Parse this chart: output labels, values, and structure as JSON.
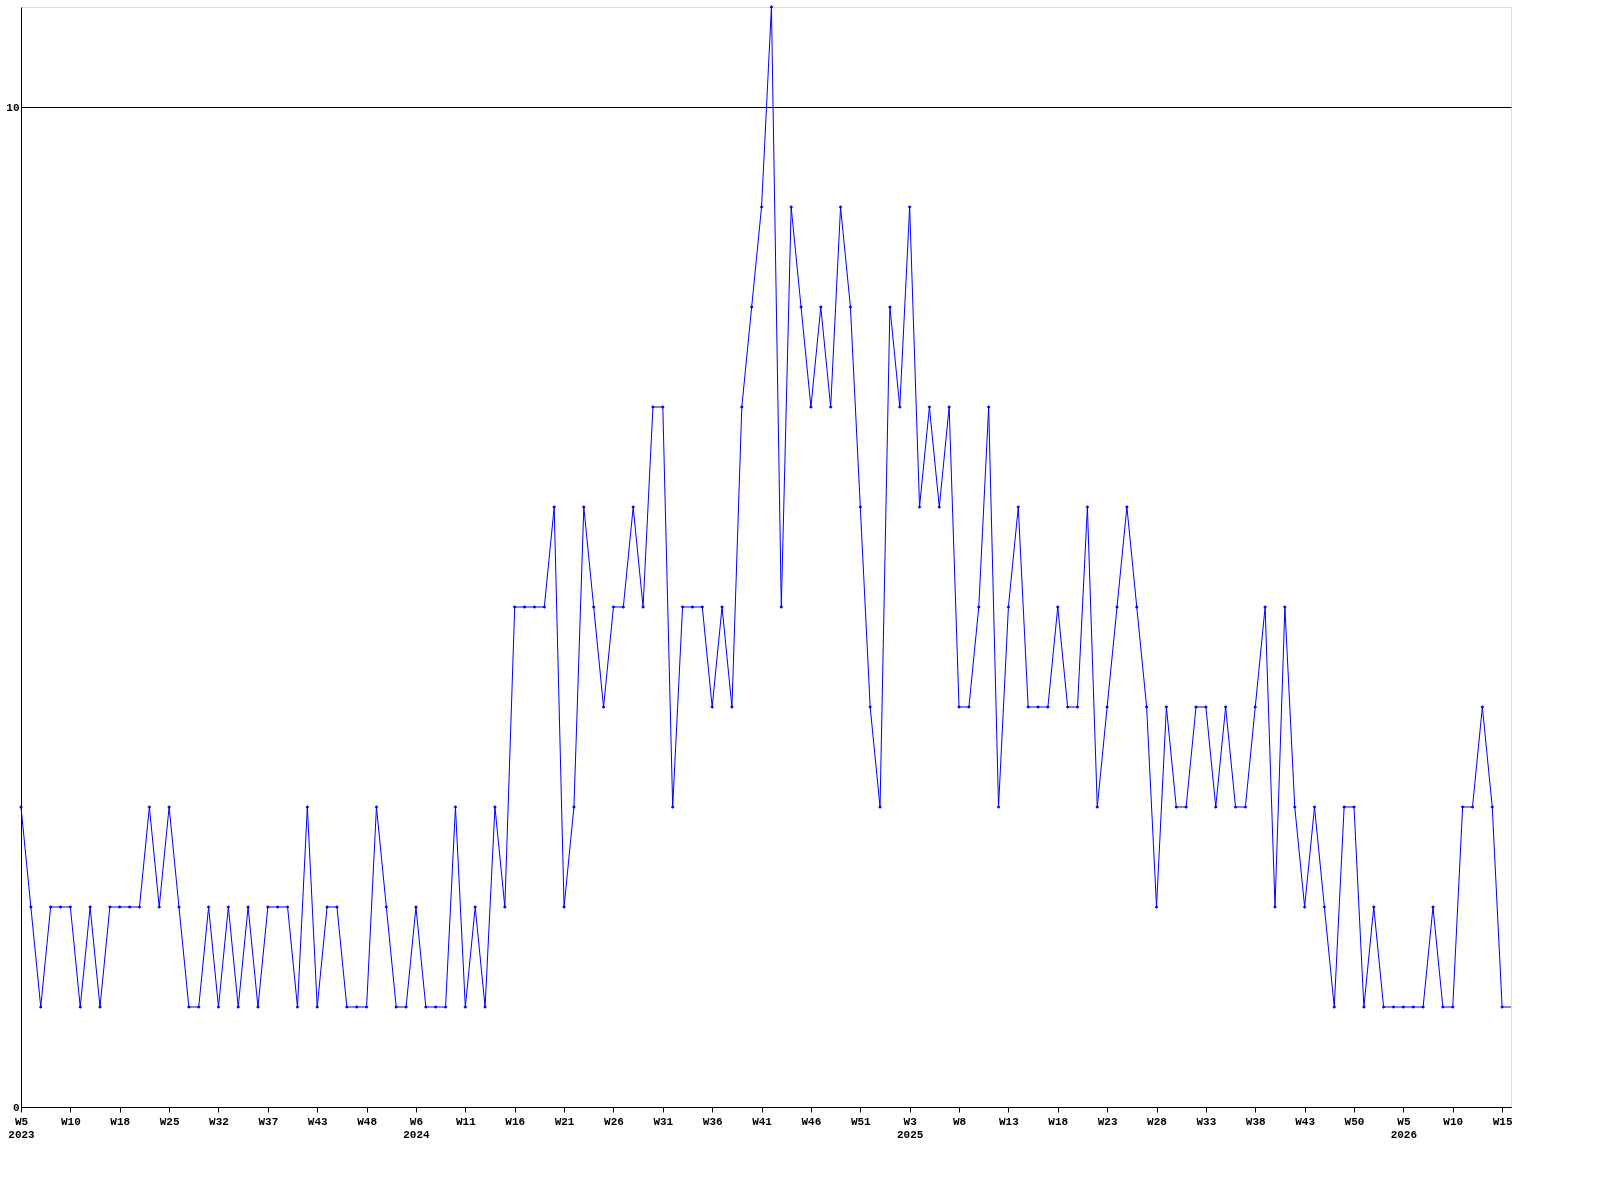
{
  "chart_data": {
    "type": "line",
    "categories": [
      "W5 2023",
      null,
      null,
      null,
      null,
      "W10",
      null,
      null,
      null,
      null,
      "W18",
      null,
      null,
      null,
      null,
      "W25",
      null,
      null,
      null,
      null,
      "W32",
      null,
      null,
      null,
      null,
      "W37",
      null,
      null,
      null,
      null,
      "W43",
      null,
      null,
      null,
      null,
      "W48",
      null,
      null,
      null,
      null,
      "W6 2024",
      null,
      null,
      null,
      null,
      "W11",
      null,
      null,
      null,
      null,
      "W16",
      null,
      null,
      null,
      null,
      "W21",
      null,
      null,
      null,
      null,
      "W26",
      null,
      null,
      null,
      null,
      "W31",
      null,
      null,
      null,
      null,
      "W36",
      null,
      null,
      null,
      null,
      "W41",
      null,
      null,
      null,
      null,
      "W46",
      null,
      null,
      null,
      null,
      "W51",
      null,
      null,
      null,
      null,
      "W3 2025",
      null,
      null,
      null,
      null,
      "W8",
      null,
      null,
      null,
      null,
      "W13",
      null,
      null,
      null,
      null,
      "W18",
      null,
      null,
      null,
      null,
      "W23",
      null,
      null,
      null,
      null,
      "W28",
      null,
      null,
      null,
      null,
      "W33",
      null,
      null,
      null,
      null,
      "W38",
      null,
      null,
      null,
      null,
      "W43",
      null,
      null,
      null,
      null,
      "W50",
      null,
      null,
      null,
      null,
      "W5 2026",
      null,
      null,
      null,
      null,
      "W10",
      null,
      null,
      null,
      null,
      "W15"
    ],
    "series": [
      {
        "color": "#0000ff",
        "values": [
          3,
          2,
          1,
          2,
          2,
          2,
          1,
          2,
          1,
          2,
          2,
          2,
          2,
          3,
          2,
          3,
          2,
          1,
          1,
          2,
          1,
          2,
          1,
          2,
          1,
          2,
          2,
          2,
          1,
          3,
          1,
          2,
          2,
          1,
          1,
          1,
          3,
          2,
          1,
          1,
          2,
          1,
          1,
          1,
          3,
          1,
          2,
          1,
          3,
          2,
          5,
          5,
          5,
          5,
          6,
          2,
          3,
          6,
          5,
          4,
          5,
          5,
          6,
          5,
          7,
          7,
          3,
          5,
          5,
          5,
          4,
          5,
          4,
          7,
          8,
          9,
          11,
          5,
          9,
          8,
          7,
          8,
          7,
          9,
          8,
          6,
          4,
          3,
          8,
          7,
          9,
          6,
          7,
          6,
          7,
          4,
          4,
          5,
          7,
          3,
          5,
          6,
          4,
          4,
          4,
          5,
          4,
          4,
          6,
          3,
          4,
          5,
          6,
          5,
          4,
          2,
          4,
          3,
          3,
          4,
          4,
          3,
          4,
          3,
          3,
          4,
          5,
          2,
          5,
          3,
          2,
          3,
          2,
          1,
          3,
          3,
          1,
          2,
          1,
          1,
          1,
          1,
          1,
          2,
          1,
          1,
          3,
          3,
          4,
          3,
          1
        ]
      }
    ],
    "ylim": [
      0,
      11
    ],
    "yticks": [
      0,
      10
    ],
    "grid": "y",
    "marker": "diamond",
    "line_style": "solid"
  }
}
